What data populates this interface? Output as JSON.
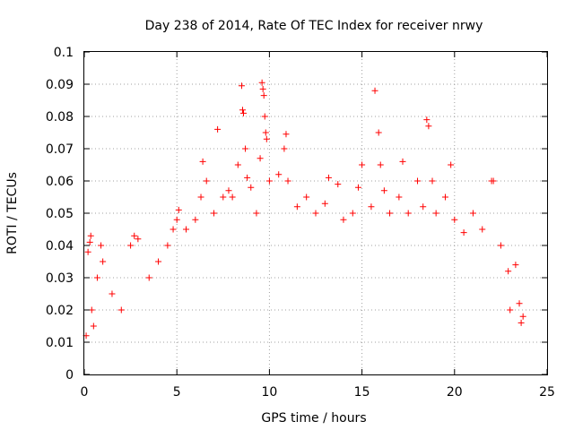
{
  "chart_data": {
    "type": "scatter",
    "title": "Day 238 of 2014, Rate Of TEC Index for receiver nrwy",
    "xlabel": "GPS time / hours",
    "ylabel": "ROTI / TECUs",
    "xlim": [
      0,
      25
    ],
    "ylim": [
      0,
      0.1
    ],
    "xticks": [
      0,
      5,
      10,
      15,
      20,
      25
    ],
    "xtick_labels": [
      "0",
      "5",
      "10",
      "15",
      "20",
      "25"
    ],
    "yticks": [
      0,
      0.01,
      0.02,
      0.03,
      0.04,
      0.05,
      0.06,
      0.07,
      0.08,
      0.09,
      0.1
    ],
    "ytick_labels": [
      "0",
      "0.01",
      "0.02",
      "0.03",
      "0.04",
      "0.05",
      "0.06",
      "0.07",
      "0.08",
      "0.09",
      "0.1"
    ],
    "grid": true,
    "marker": "+",
    "marker_color": "#ff0000",
    "series": [
      {
        "points": [
          [
            0.1,
            0.012
          ],
          [
            0.2,
            0.038
          ],
          [
            0.3,
            0.041
          ],
          [
            0.35,
            0.043
          ],
          [
            0.4,
            0.02
          ],
          [
            0.5,
            0.015
          ],
          [
            0.7,
            0.03
          ],
          [
            0.9,
            0.04
          ],
          [
            1.0,
            0.035
          ],
          [
            1.5,
            0.025
          ],
          [
            2.0,
            0.02
          ],
          [
            2.5,
            0.04
          ],
          [
            2.7,
            0.043
          ],
          [
            2.9,
            0.042
          ],
          [
            3.5,
            0.03
          ],
          [
            4.0,
            0.035
          ],
          [
            4.5,
            0.04
          ],
          [
            4.8,
            0.045
          ],
          [
            5.0,
            0.048
          ],
          [
            5.1,
            0.051
          ],
          [
            5.5,
            0.045
          ],
          [
            6.0,
            0.048
          ],
          [
            6.3,
            0.055
          ],
          [
            6.4,
            0.066
          ],
          [
            6.6,
            0.06
          ],
          [
            7.0,
            0.05
          ],
          [
            7.2,
            0.076
          ],
          [
            7.5,
            0.055
          ],
          [
            7.8,
            0.057
          ],
          [
            8.0,
            0.055
          ],
          [
            8.3,
            0.065
          ],
          [
            8.5,
            0.0895
          ],
          [
            8.55,
            0.082
          ],
          [
            8.6,
            0.081
          ],
          [
            8.7,
            0.07
          ],
          [
            8.8,
            0.061
          ],
          [
            9.0,
            0.058
          ],
          [
            9.3,
            0.05
          ],
          [
            9.5,
            0.067
          ],
          [
            9.6,
            0.0905
          ],
          [
            9.65,
            0.0885
          ],
          [
            9.7,
            0.0865
          ],
          [
            9.75,
            0.08
          ],
          [
            9.8,
            0.075
          ],
          [
            9.85,
            0.073
          ],
          [
            10.0,
            0.06
          ],
          [
            10.5,
            0.062
          ],
          [
            10.8,
            0.07
          ],
          [
            10.9,
            0.0745
          ],
          [
            11.0,
            0.06
          ],
          [
            11.5,
            0.052
          ],
          [
            12.0,
            0.055
          ],
          [
            12.5,
            0.05
          ],
          [
            13.0,
            0.053
          ],
          [
            13.2,
            0.061
          ],
          [
            13.7,
            0.059
          ],
          [
            14.0,
            0.048
          ],
          [
            14.5,
            0.05
          ],
          [
            14.8,
            0.058
          ],
          [
            15.0,
            0.065
          ],
          [
            15.5,
            0.052
          ],
          [
            15.7,
            0.088
          ],
          [
            15.9,
            0.075
          ],
          [
            16.0,
            0.065
          ],
          [
            16.2,
            0.057
          ],
          [
            16.5,
            0.05
          ],
          [
            17.0,
            0.055
          ],
          [
            17.2,
            0.066
          ],
          [
            17.5,
            0.05
          ],
          [
            18.0,
            0.06
          ],
          [
            18.3,
            0.052
          ],
          [
            18.5,
            0.079
          ],
          [
            18.6,
            0.077
          ],
          [
            18.8,
            0.06
          ],
          [
            19.0,
            0.05
          ],
          [
            19.5,
            0.055
          ],
          [
            19.8,
            0.065
          ],
          [
            20.0,
            0.048
          ],
          [
            20.5,
            0.044
          ],
          [
            21.0,
            0.05
          ],
          [
            21.5,
            0.045
          ],
          [
            22.0,
            0.06
          ],
          [
            22.1,
            0.06
          ],
          [
            22.5,
            0.04
          ],
          [
            22.9,
            0.032
          ],
          [
            23.0,
            0.02
          ],
          [
            23.3,
            0.034
          ],
          [
            23.5,
            0.022
          ],
          [
            23.6,
            0.016
          ],
          [
            23.7,
            0.018
          ]
        ]
      }
    ]
  }
}
